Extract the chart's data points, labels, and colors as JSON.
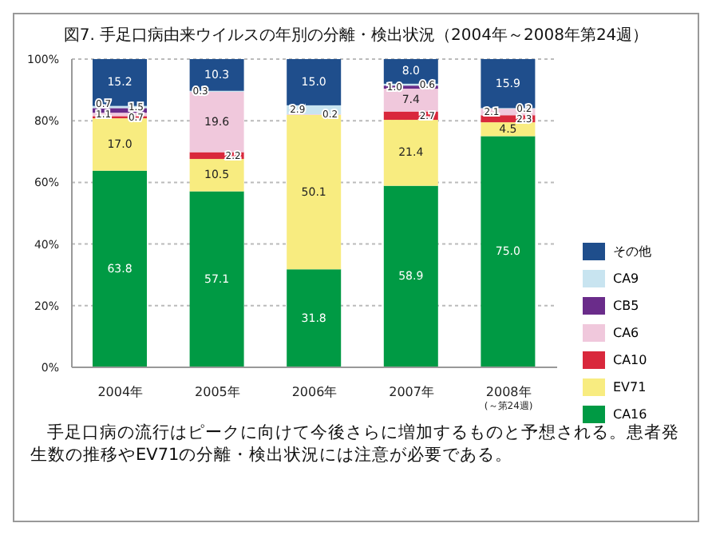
{
  "chart_data": {
    "type": "bar",
    "title": "図7. 手足口病由来ウイルスの年別の分離・検出状況（2004年～2008年第24週）",
    "categories": [
      "2004年",
      "2005年",
      "2006年",
      "2007年",
      "2008年$_{(～第24週)}$"
    ],
    "stacked": true,
    "data_labels": true,
    "grid": "y",
    "legend": "right",
    "ylim": [
      0,
      100
    ],
    "yticks": [
      {
        "value": 0,
        "label": "0%"
      },
      {
        "value": 20,
        "label": "20%"
      },
      {
        "value": 40,
        "label": "40%"
      },
      {
        "value": 60,
        "label": "60%"
      },
      {
        "value": 80,
        "label": "80%"
      },
      {
        "value": 100,
        "label": "100%"
      }
    ],
    "series": [
      {
        "name": "CA16",
        "color": "#009a44",
        "values": [
          63.8,
          57.1,
          31.8,
          58.9,
          75.0
        ],
        "value_labels": [
          "63.8",
          "57.1",
          "31.8",
          "58.9",
          "75.0"
        ]
      },
      {
        "name": "EV71",
        "color": "#f8ec80",
        "values": [
          17.0,
          10.5,
          50.1,
          21.4,
          4.5
        ],
        "value_labels": [
          "17.0",
          "10.5",
          "50.1",
          "21.4",
          "4.5"
        ]
      },
      {
        "name": "CA10",
        "color": "#d9283c",
        "values": [
          0.7,
          2.2,
          null,
          2.7,
          2.3
        ],
        "value_labels": [
          "0.7",
          "2.2",
          null,
          "2.7",
          "2.3"
        ]
      },
      {
        "name": "CA6",
        "color": "#f0c8dc",
        "values": [
          1.1,
          19.6,
          0.2,
          7.4,
          2.1
        ],
        "value_labels": [
          "1.1",
          "19.6",
          "0.2",
          "7.4",
          "2.1"
        ]
      },
      {
        "name": "CB5",
        "color": "#6a2c8a",
        "values": [
          1.5,
          null,
          null,
          1.0,
          null
        ],
        "value_labels": [
          "1.5",
          null,
          null,
          "1.0",
          null
        ]
      },
      {
        "name": "CA9",
        "color": "#c8e4f0",
        "values": [
          0.7,
          0.3,
          2.9,
          0.6,
          0.2
        ],
        "value_labels": [
          "0.7",
          "0.3",
          "2.9",
          "0.6",
          "0.2"
        ]
      },
      {
        "name": "その他",
        "color": "#1f4e8c",
        "values": [
          15.2,
          10.3,
          15.0,
          8.0,
          15.9
        ],
        "value_labels": [
          "15.2",
          "10.3",
          "15.0",
          "8.0",
          "15.9"
        ]
      }
    ],
    "annotations": [
      "手足口病の流行はピークに向けて今後さらに増加するものと予想される。患者発生数の推移やEV71の分離・検出状況には注意が必要である。"
    ]
  }
}
